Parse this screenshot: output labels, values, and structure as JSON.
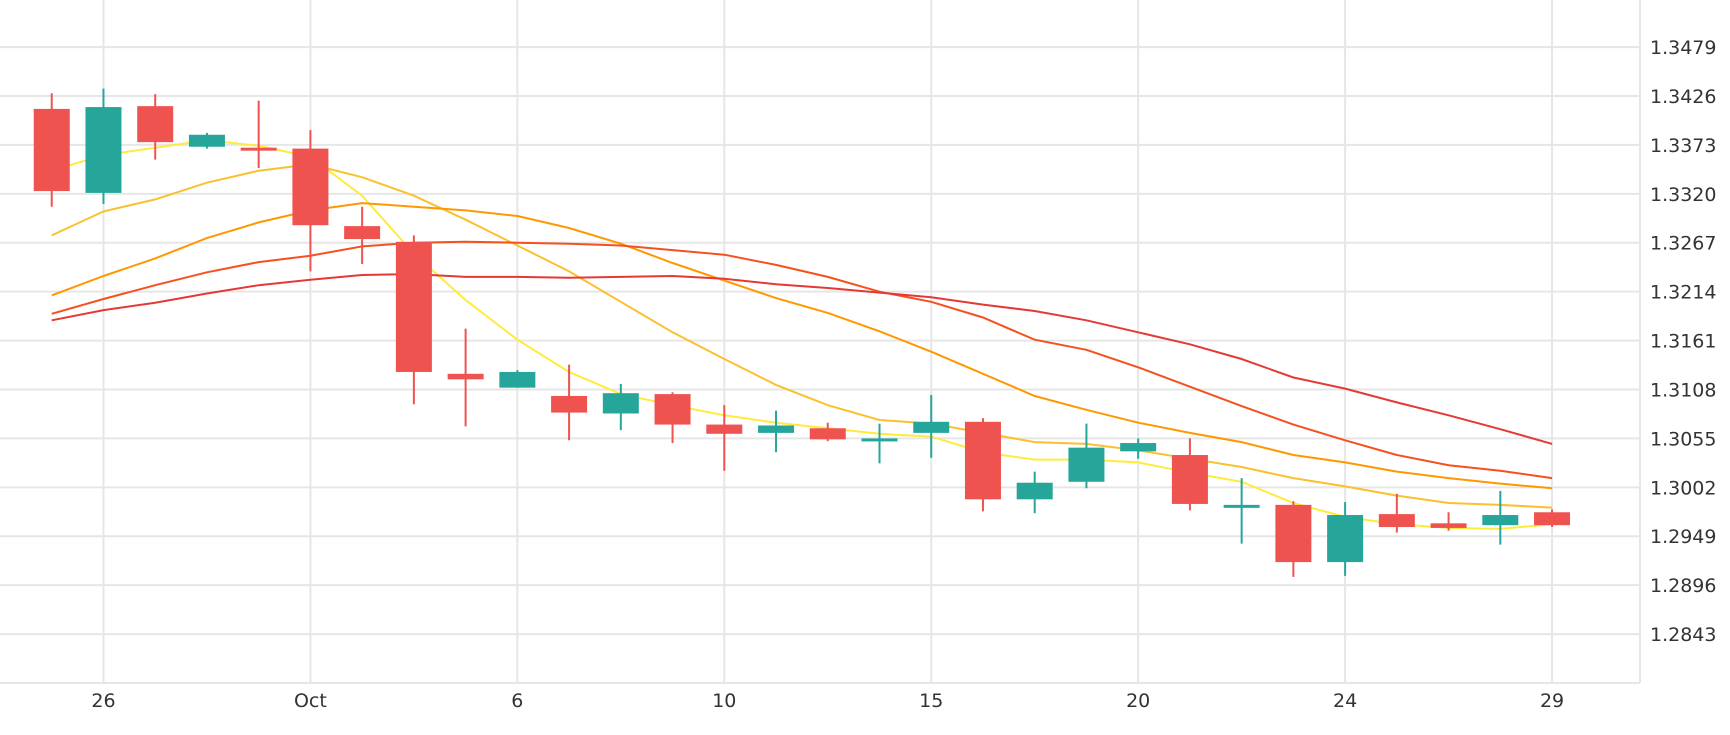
{
  "chart_data": {
    "type": "candlestick",
    "colors": {
      "up": "#26a69a",
      "down": "#ef5350",
      "grid": "#e6e6e6",
      "axis_text": "#333333"
    },
    "y_axis": {
      "position": "right",
      "ticks": [
        "1.3479",
        "1.3426",
        "1.3373",
        "1.3320",
        "1.3267",
        "1.3214",
        "1.3161",
        "1.3108",
        "1.3055",
        "1.3002",
        "1.2949",
        "1.2896",
        "1.2843"
      ],
      "tick_values": [
        1.3479,
        1.3426,
        1.3373,
        1.332,
        1.3267,
        1.3214,
        1.3161,
        1.3108,
        1.3055,
        1.3002,
        1.2949,
        1.2896,
        1.2843
      ],
      "range": [
        1.279,
        1.353
      ]
    },
    "x_axis": {
      "ticks": [
        {
          "label": "26",
          "index": 1
        },
        {
          "label": "Oct",
          "index": 5
        },
        {
          "label": "6",
          "index": 9
        },
        {
          "label": "10",
          "index": 13
        },
        {
          "label": "15",
          "index": 17
        },
        {
          "label": "20",
          "index": 21
        },
        {
          "label": "24",
          "index": 25
        },
        {
          "label": "29",
          "index": 29
        }
      ],
      "range": [
        -1.0,
        30.7
      ]
    },
    "candles": [
      {
        "i": 0,
        "o": 1.3412,
        "h": 1.3429,
        "l": 1.3306,
        "c": 1.3323
      },
      {
        "i": 1,
        "o": 1.3321,
        "h": 1.3434,
        "l": 1.3309,
        "c": 1.3414
      },
      {
        "i": 2,
        "o": 1.3415,
        "h": 1.3428,
        "l": 1.3357,
        "c": 1.3376
      },
      {
        "i": 3,
        "o": 1.3371,
        "h": 1.3386,
        "l": 1.3369,
        "c": 1.3384
      },
      {
        "i": 4,
        "o": 1.337,
        "h": 1.3421,
        "l": 1.3348,
        "c": 1.3368
      },
      {
        "i": 5,
        "o": 1.3369,
        "h": 1.3389,
        "l": 1.3236,
        "c": 1.3286
      },
      {
        "i": 6,
        "o": 1.3285,
        "h": 1.3306,
        "l": 1.3244,
        "c": 1.3271
      },
      {
        "i": 7,
        "o": 1.3268,
        "h": 1.3275,
        "l": 1.3092,
        "c": 1.3127
      },
      {
        "i": 8,
        "o": 1.3125,
        "h": 1.3174,
        "l": 1.3068,
        "c": 1.3119
      },
      {
        "i": 9,
        "o": 1.311,
        "h": 1.3129,
        "l": 1.311,
        "c": 1.3127
      },
      {
        "i": 10,
        "o": 1.3101,
        "h": 1.3135,
        "l": 1.3053,
        "c": 1.3083
      },
      {
        "i": 11,
        "o": 1.3082,
        "h": 1.3114,
        "l": 1.3064,
        "c": 1.3104
      },
      {
        "i": 12,
        "o": 1.3103,
        "h": 1.3105,
        "l": 1.305,
        "c": 1.307
      },
      {
        "i": 13,
        "o": 1.307,
        "h": 1.3091,
        "l": 1.302,
        "c": 1.306
      },
      {
        "i": 14,
        "o": 1.3061,
        "h": 1.3085,
        "l": 1.304,
        "c": 1.3069
      },
      {
        "i": 15,
        "o": 1.3066,
        "h": 1.3072,
        "l": 1.3052,
        "c": 1.3054
      },
      {
        "i": 16,
        "o": 1.3055,
        "h": 1.3071,
        "l": 1.3028,
        "c": 1.3055
      },
      {
        "i": 17,
        "o": 1.3061,
        "h": 1.3102,
        "l": 1.3034,
        "c": 1.3073
      },
      {
        "i": 18,
        "o": 1.3073,
        "h": 1.3077,
        "l": 1.2976,
        "c": 1.2989
      },
      {
        "i": 19,
        "o": 1.2989,
        "h": 1.3019,
        "l": 1.2974,
        "c": 1.3007
      },
      {
        "i": 20,
        "o": 1.3008,
        "h": 1.3071,
        "l": 1.3001,
        "c": 1.3045
      },
      {
        "i": 21,
        "o": 1.3041,
        "h": 1.3055,
        "l": 1.3033,
        "c": 1.305
      },
      {
        "i": 22,
        "o": 1.3037,
        "h": 1.3055,
        "l": 1.2977,
        "c": 1.2984
      },
      {
        "i": 23,
        "o": 1.298,
        "h": 1.3012,
        "l": 1.2941,
        "c": 1.2983
      },
      {
        "i": 24,
        "o": 1.2983,
        "h": 1.2987,
        "l": 1.2905,
        "c": 1.2921
      },
      {
        "i": 25,
        "o": 1.2921,
        "h": 1.2986,
        "l": 1.2906,
        "c": 1.2972
      },
      {
        "i": 26,
        "o": 1.2973,
        "h": 1.2995,
        "l": 1.2953,
        "c": 1.2959
      },
      {
        "i": 27,
        "o": 1.2963,
        "h": 1.2975,
        "l": 1.2955,
        "c": 1.2958
      },
      {
        "i": 28,
        "o": 1.2961,
        "h": 1.2998,
        "l": 1.294,
        "c": 1.2972
      },
      {
        "i": 29,
        "o": 1.2975,
        "h": 1.2978,
        "l": 1.2959,
        "c": 1.2961
      }
    ],
    "ma_lines": [
      {
        "color": "#ffeb3b",
        "values": [
          [
            0,
            1.3345
          ],
          [
            1,
            1.3362
          ],
          [
            2,
            1.337
          ],
          [
            3,
            1.3378
          ],
          [
            4,
            1.3372
          ],
          [
            5,
            1.336
          ],
          [
            6,
            1.3318
          ],
          [
            7,
            1.3255
          ],
          [
            8,
            1.3205
          ],
          [
            9,
            1.3162
          ],
          [
            10,
            1.3127
          ],
          [
            11,
            1.3103
          ],
          [
            12,
            1.3091
          ],
          [
            13,
            1.308
          ],
          [
            14,
            1.3072
          ],
          [
            15,
            1.3066
          ],
          [
            16,
            1.306
          ],
          [
            17,
            1.3057
          ],
          [
            18,
            1.304
          ],
          [
            19,
            1.3032
          ],
          [
            20,
            1.3032
          ],
          [
            21,
            1.3029
          ],
          [
            22,
            1.3018
          ],
          [
            23,
            1.3008
          ],
          [
            24,
            1.2985
          ],
          [
            25,
            1.297
          ],
          [
            26,
            1.2962
          ],
          [
            27,
            1.2958
          ],
          [
            28,
            1.2957
          ],
          [
            29,
            1.2962
          ]
        ]
      },
      {
        "color": "#fbc02d",
        "values": [
          [
            0,
            1.3275
          ],
          [
            1,
            1.3301
          ],
          [
            2,
            1.3314
          ],
          [
            3,
            1.3332
          ],
          [
            4,
            1.3345
          ],
          [
            5,
            1.3352
          ],
          [
            6,
            1.3338
          ],
          [
            7,
            1.3318
          ],
          [
            8,
            1.3292
          ],
          [
            9,
            1.3264
          ],
          [
            10,
            1.3236
          ],
          [
            11,
            1.3203
          ],
          [
            12,
            1.317
          ],
          [
            13,
            1.3141
          ],
          [
            14,
            1.3113
          ],
          [
            15,
            1.3091
          ],
          [
            16,
            1.3075
          ],
          [
            17,
            1.3071
          ],
          [
            18,
            1.3061
          ],
          [
            19,
            1.3051
          ],
          [
            20,
            1.3049
          ],
          [
            21,
            1.3042
          ],
          [
            22,
            1.3033
          ],
          [
            23,
            1.3024
          ],
          [
            24,
            1.3012
          ],
          [
            25,
            1.3003
          ],
          [
            26,
            1.2993
          ],
          [
            27,
            1.2985
          ],
          [
            28,
            1.2983
          ],
          [
            29,
            1.298
          ]
        ]
      },
      {
        "color": "#ff9800",
        "values": [
          [
            0,
            1.321
          ],
          [
            1,
            1.3231
          ],
          [
            2,
            1.325
          ],
          [
            3,
            1.3272
          ],
          [
            4,
            1.3289
          ],
          [
            5,
            1.3302
          ],
          [
            6,
            1.331
          ],
          [
            7,
            1.3306
          ],
          [
            8,
            1.3302
          ],
          [
            9,
            1.3296
          ],
          [
            10,
            1.3283
          ],
          [
            11,
            1.3266
          ],
          [
            12,
            1.3245
          ],
          [
            13,
            1.3226
          ],
          [
            14,
            1.3207
          ],
          [
            15,
            1.3191
          ],
          [
            16,
            1.3171
          ],
          [
            17,
            1.3149
          ],
          [
            18,
            1.3125
          ],
          [
            19,
            1.3101
          ],
          [
            20,
            1.3086
          ],
          [
            21,
            1.3072
          ],
          [
            22,
            1.3061
          ],
          [
            23,
            1.3051
          ],
          [
            24,
            1.3037
          ],
          [
            25,
            1.3029
          ],
          [
            26,
            1.3019
          ],
          [
            27,
            1.3012
          ],
          [
            28,
            1.3006
          ],
          [
            29,
            1.3001
          ]
        ]
      },
      {
        "color": "#f4511e",
        "values": [
          [
            0,
            1.319
          ],
          [
            1,
            1.3206
          ],
          [
            2,
            1.3221
          ],
          [
            3,
            1.3235
          ],
          [
            4,
            1.3246
          ],
          [
            5,
            1.3253
          ],
          [
            6,
            1.3263
          ],
          [
            7,
            1.3267
          ],
          [
            8,
            1.3268
          ],
          [
            9,
            1.3267
          ],
          [
            10,
            1.3266
          ],
          [
            11,
            1.3264
          ],
          [
            12,
            1.3259
          ],
          [
            13,
            1.3254
          ],
          [
            14,
            1.3243
          ],
          [
            15,
            1.323
          ],
          [
            16,
            1.3214
          ],
          [
            17,
            1.3203
          ],
          [
            18,
            1.3186
          ],
          [
            19,
            1.3162
          ],
          [
            20,
            1.3151
          ],
          [
            21,
            1.3132
          ],
          [
            22,
            1.3111
          ],
          [
            23,
            1.309
          ],
          [
            24,
            1.307
          ],
          [
            25,
            1.3053
          ],
          [
            26,
            1.3037
          ],
          [
            27,
            1.3026
          ],
          [
            28,
            1.302
          ],
          [
            29,
            1.3012
          ]
        ]
      },
      {
        "color": "#e53935",
        "values": [
          [
            0,
            1.3183
          ],
          [
            1,
            1.3194
          ],
          [
            2,
            1.3202
          ],
          [
            3,
            1.3212
          ],
          [
            4,
            1.3221
          ],
          [
            5,
            1.3227
          ],
          [
            6,
            1.3232
          ],
          [
            7,
            1.3233
          ],
          [
            8,
            1.323
          ],
          [
            9,
            1.323
          ],
          [
            10,
            1.3229
          ],
          [
            11,
            1.323
          ],
          [
            12,
            1.3231
          ],
          [
            13,
            1.3228
          ],
          [
            14,
            1.3222
          ],
          [
            15,
            1.3218
          ],
          [
            16,
            1.3213
          ],
          [
            17,
            1.3208
          ],
          [
            18,
            1.32
          ],
          [
            19,
            1.3193
          ],
          [
            20,
            1.3183
          ],
          [
            21,
            1.317
          ],
          [
            22,
            1.3157
          ],
          [
            23,
            1.3141
          ],
          [
            24,
            1.3121
          ],
          [
            25,
            1.3109
          ],
          [
            26,
            1.3094
          ],
          [
            27,
            1.308
          ],
          [
            28,
            1.3065
          ],
          [
            29,
            1.3049
          ]
        ]
      }
    ]
  }
}
